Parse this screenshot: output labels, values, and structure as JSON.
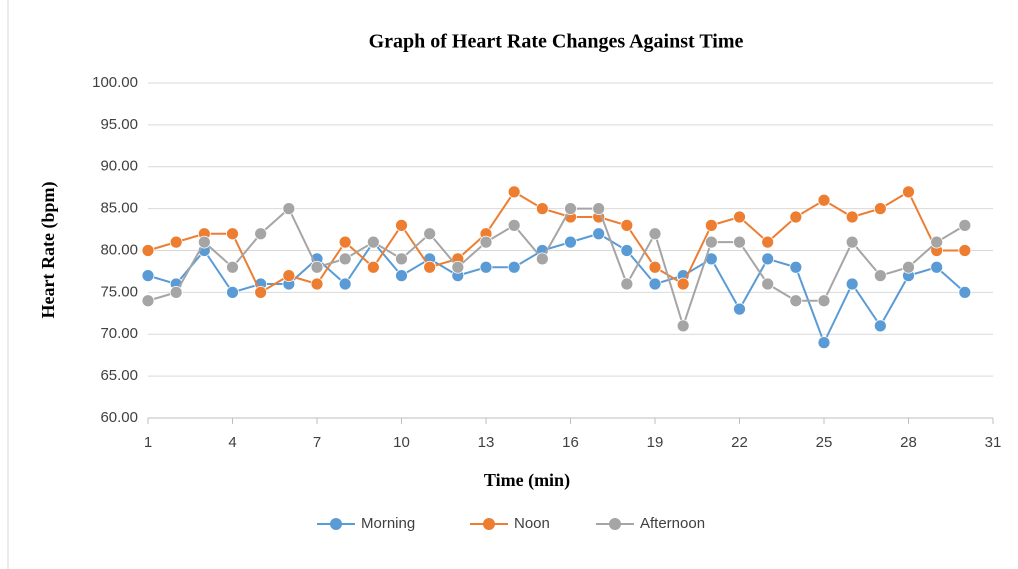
{
  "chart_data": {
    "type": "line",
    "title": "Graph of Heart Rate Changes Against Time",
    "x_label": "Time (min)",
    "y_label": "Heart Rate (bpm)",
    "x": [
      1,
      2,
      3,
      4,
      5,
      6,
      7,
      8,
      9,
      10,
      11,
      12,
      13,
      14,
      15,
      16,
      17,
      18,
      19,
      20,
      21,
      22,
      23,
      24,
      25,
      26,
      27,
      28,
      29,
      30
    ],
    "series": [
      {
        "name": "Morning",
        "color": "#5b9bd5",
        "values": [
          77,
          76,
          80,
          75,
          76,
          76,
          79,
          76,
          81,
          77,
          79,
          77,
          78,
          78,
          80,
          81,
          82,
          80,
          76,
          77,
          79,
          73,
          79,
          78,
          69,
          76,
          71,
          77,
          78,
          75
        ]
      },
      {
        "name": "Noon",
        "color": "#ed7d31",
        "values": [
          80,
          81,
          82,
          82,
          75,
          77,
          76,
          81,
          78,
          83,
          78,
          79,
          82,
          87,
          85,
          84,
          84,
          83,
          78,
          76,
          83,
          84,
          81,
          84,
          86,
          84,
          85,
          87,
          80,
          80
        ]
      },
      {
        "name": "Afternoon",
        "color": "#a5a5a5",
        "values": [
          74,
          75,
          81,
          78,
          82,
          85,
          78,
          79,
          81,
          79,
          82,
          78,
          81,
          83,
          79,
          85,
          85,
          76,
          82,
          71,
          81,
          81,
          76,
          74,
          74,
          81,
          77,
          78,
          81,
          83
        ]
      }
    ],
    "xlim": [
      1,
      31
    ],
    "xticks": [
      1,
      4,
      7,
      10,
      13,
      16,
      19,
      22,
      25,
      28,
      31
    ],
    "ylim": [
      60,
      100
    ],
    "yticks": [
      {
        "value": 60,
        "label": "60.00"
      },
      {
        "value": 65,
        "label": "65.00"
      },
      {
        "value": 70,
        "label": "70.00"
      },
      {
        "value": 75,
        "label": "75.00"
      },
      {
        "value": 80,
        "label": "80.00"
      },
      {
        "value": 85,
        "label": "85.00"
      },
      {
        "value": 90,
        "label": "90.00"
      },
      {
        "value": 95,
        "label": "95.00"
      },
      {
        "value": 100,
        "label": "100.00"
      }
    ],
    "grid": true,
    "legend": "bottom"
  }
}
